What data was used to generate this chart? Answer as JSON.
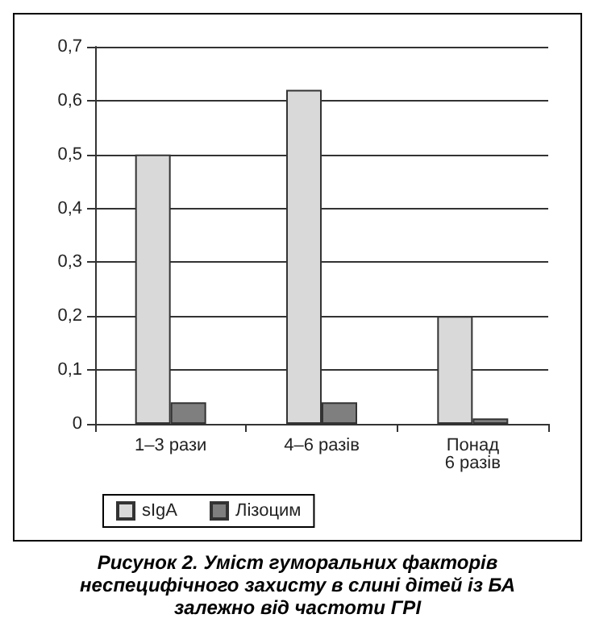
{
  "chart_data": {
    "type": "bar",
    "title": "Рисунок 2. Уміст гуморальних факторів неспецифічного захисту в слині дітей із БА залежно від частоти ГРІ",
    "categories": [
      "1–3 рази",
      "4–6 разів",
      "Понад\n6 разів"
    ],
    "series": [
      {
        "name": "sIgA",
        "color": "#d9d9d9",
        "values": [
          0.5,
          0.62,
          0.2
        ]
      },
      {
        "name": "Лізоцим",
        "color": "#7f7f7f",
        "values": [
          0.04,
          0.04,
          0.01
        ]
      }
    ],
    "ylim": [
      0,
      0.7
    ],
    "yticks": [
      {
        "value": 0,
        "label": "0"
      },
      {
        "value": 0.1,
        "label": "0,1"
      },
      {
        "value": 0.2,
        "label": "0,2"
      },
      {
        "value": 0.3,
        "label": "0,3"
      },
      {
        "value": 0.4,
        "label": "0,4"
      },
      {
        "value": 0.5,
        "label": "0,5"
      },
      {
        "value": 0.6,
        "label": "0,6"
      },
      {
        "value": 0.7,
        "label": "0,7"
      }
    ],
    "grid": "y",
    "legend": "bottom left"
  }
}
